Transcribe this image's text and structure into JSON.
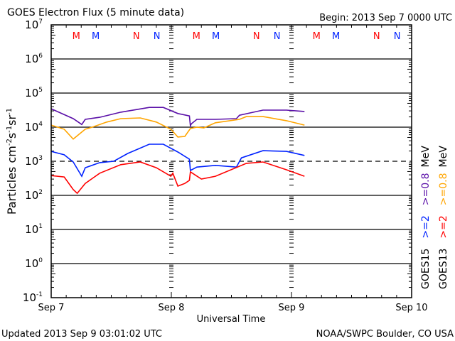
{
  "title": "GOES Electron Flux (5 minute data)",
  "begin": "Begin: 2013 Sep 7 0000 UTC",
  "updated": "Updated 2013 Sep  9 03:01:02 UTC",
  "credit": "NOAA/SWPC Boulder, CO USA",
  "colors": {
    "goes15_08": "#5a0fa8",
    "goes13_08": "#ffa500",
    "goes15_2": "#0022ff",
    "goes13_2": "#ff0000",
    "marker_red": "#ff0000",
    "marker_blue": "#0022ff"
  },
  "legend": {
    "goes15": {
      "sat": "GOES15",
      "e2": ">=2",
      "e08": ">=0.8",
      "unit": "MeV"
    },
    "goes13": {
      "sat": "GOES13",
      "e2": ">=2",
      "e08": ">=0.8",
      "unit": "MeV"
    }
  },
  "markers": {
    "labels": [
      {
        "text": "M",
        "color": "red",
        "hour": 5.0
      },
      {
        "text": "M",
        "color": "blue",
        "hour": 8.9
      },
      {
        "text": "N",
        "color": "red",
        "hour": 17.0
      },
      {
        "text": "N",
        "color": "blue",
        "hour": 21.1
      }
    ]
  },
  "chart_data": {
    "type": "line",
    "title": "GOES Electron Flux (5 minute data)",
    "xlabel": "Universal Time",
    "ylabel": "Particles cm-2 s-1 sr-1",
    "x_units": "hours since 2013 Sep 7 0000 UTC",
    "xlim": [
      0,
      72
    ],
    "x_ticks": [
      "Sep 7",
      "Sep 8",
      "Sep 9",
      "Sep 10"
    ],
    "y_scale": "log",
    "ylim_log10": [
      -1,
      7
    ],
    "y_ticks": [
      {
        "base": "10",
        "exp": "7"
      },
      {
        "base": "10",
        "exp": "6"
      },
      {
        "base": "10",
        "exp": "5"
      },
      {
        "base": "10",
        "exp": "4"
      },
      {
        "base": "10",
        "exp": "3"
      },
      {
        "base": "10",
        "exp": "2"
      },
      {
        "base": "10",
        "exp": "1"
      },
      {
        "base": "10",
        "exp": "0"
      },
      {
        "base": "10",
        "exp": "-1"
      }
    ],
    "reference_line_log10": 3,
    "series": [
      {
        "name": "GOES15 >=0.8 MeV",
        "color_key": "goes15_08",
        "x": [
          0,
          4.4,
          6.1,
          6.8,
          9.7,
          13.9,
          19.6,
          22.4,
          25.3,
          27.6,
          27.8,
          28,
          29.1,
          32.8,
          37,
          37.6,
          42.3,
          47,
          50.6
        ],
        "log10": [
          4.54,
          4.25,
          4.08,
          4.23,
          4.29,
          4.44,
          4.58,
          4.58,
          4.4,
          4.33,
          4.04,
          4.1,
          4.23,
          4.23,
          4.25,
          4.35,
          4.5,
          4.5,
          4.46
        ]
      },
      {
        "name": "GOES13 >=0.8 MeV",
        "color_key": "goes13_08",
        "x": [
          0,
          2.6,
          4.4,
          6.8,
          8.2,
          11.1,
          13.9,
          17.8,
          21,
          23.9,
          25.3,
          26.7,
          27.8,
          29.1,
          30.5,
          32.8,
          37.6,
          39,
          42.3,
          47,
          50.6
        ],
        "log10": [
          4.06,
          3.94,
          3.65,
          3.94,
          4.0,
          4.15,
          4.25,
          4.27,
          4.15,
          3.94,
          3.71,
          3.73,
          3.96,
          4.0,
          3.98,
          4.13,
          4.23,
          4.31,
          4.31,
          4.19,
          4.06
        ]
      },
      {
        "name": "GOES15 >=2 MeV",
        "color_key": "goes15_2",
        "x": [
          0,
          2.6,
          4.4,
          6.1,
          6.8,
          9.7,
          12.5,
          15.3,
          19.6,
          22.4,
          25.3,
          27.6,
          27.8,
          29.1,
          32.8,
          37,
          38,
          42.3,
          47,
          50.6
        ],
        "log10": [
          3.29,
          3.19,
          2.98,
          2.56,
          2.81,
          2.96,
          3.0,
          3.23,
          3.5,
          3.5,
          3.27,
          3.06,
          2.73,
          2.83,
          2.88,
          2.83,
          3.1,
          3.31,
          3.29,
          3.17
        ]
      },
      {
        "name": "GOES13 >=2 MeV",
        "color_key": "goes13_2",
        "x": [
          0,
          2.6,
          4.4,
          5.2,
          6.8,
          9.7,
          13.9,
          17.8,
          21,
          23.9,
          24.3,
          25.3,
          26.7,
          27.6,
          27.8,
          30,
          32.8,
          39,
          42.3,
          47,
          50.6
        ],
        "log10": [
          2.58,
          2.54,
          2.17,
          2.06,
          2.35,
          2.65,
          2.9,
          2.98,
          2.81,
          2.56,
          2.65,
          2.27,
          2.35,
          2.44,
          2.69,
          2.48,
          2.56,
          2.94,
          2.98,
          2.75,
          2.56
        ]
      }
    ]
  }
}
